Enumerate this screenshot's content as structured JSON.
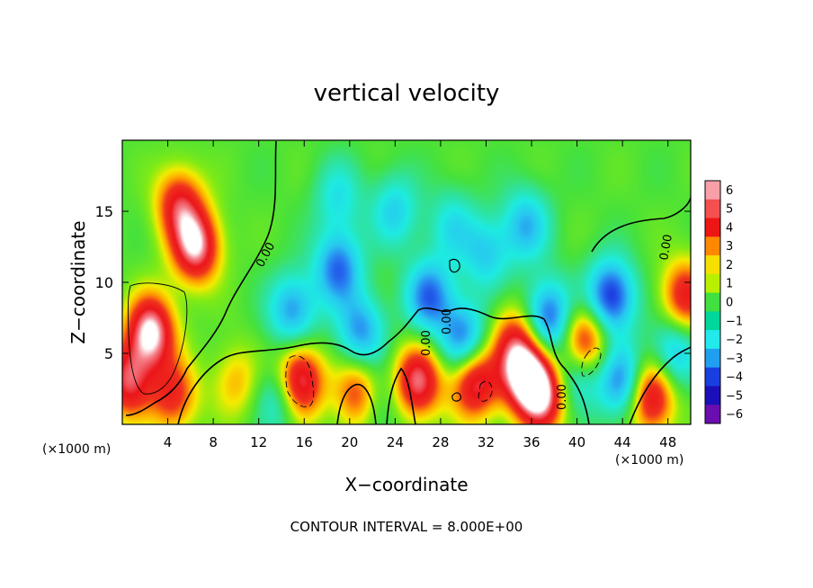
{
  "chart_data": {
    "type": "heatmap",
    "title": "vertical velocity",
    "xlabel": "X−coordinate",
    "ylabel": "Z−coordinate",
    "x_unit_left": "(×1000 m)",
    "x_unit_right": "(×1000 m)",
    "xlim": [
      0,
      50
    ],
    "ylim": [
      0,
      20
    ],
    "x_ticks": [
      4,
      8,
      12,
      16,
      20,
      24,
      28,
      32,
      36,
      40,
      44,
      48
    ],
    "x_tick_labels": [
      "4",
      "8",
      "12",
      "16",
      "20",
      "24",
      "28",
      "32",
      "36",
      "40",
      "44",
      "48"
    ],
    "y_ticks": [
      5,
      10,
      15
    ],
    "y_tick_labels": [
      "5",
      "10",
      "15"
    ],
    "colorbar": {
      "min": -6,
      "max": 6,
      "tick_values": [
        6,
        5,
        4,
        3,
        2,
        1,
        0,
        -1,
        -2,
        -3,
        -4,
        -5,
        -6
      ],
      "tick_labels": [
        "6",
        "5",
        "4",
        "3",
        "2",
        "1",
        "0",
        "−1",
        "−2",
        "−3",
        "−4",
        "−5",
        "−6"
      ],
      "colors": [
        "#f7a0a8",
        "#f45050",
        "#ee1515",
        "#ff8800",
        "#f5e000",
        "#b8f000",
        "#3fe03f",
        "#00d79a",
        "#22eaea",
        "#1f9ff0",
        "#1a3fe0",
        "#1a0fb8",
        "#6a0eb0"
      ]
    },
    "contour_labels": [
      "0.00",
      "0.00",
      "0.00",
      "0.00",
      "0.00"
    ],
    "footer": "CONTOUR INTERVAL = 8.000E+00",
    "features": [
      {
        "x": 2.5,
        "z": 6.5,
        "w": 6
      },
      {
        "x": 6.5,
        "z": 12.5,
        "w": 5.5
      },
      {
        "x": 5,
        "z": 15.5,
        "w": 4
      },
      {
        "x": 0.5,
        "z": 3,
        "w": 4.5
      },
      {
        "x": 4.5,
        "z": 2,
        "w": 3.5
      },
      {
        "x": 10,
        "z": 3,
        "w": 2
      },
      {
        "x": 15.5,
        "z": 3,
        "w": 6
      },
      {
        "x": 21,
        "z": 2,
        "w": 5
      },
      {
        "x": 26,
        "z": 3,
        "w": 5
      },
      {
        "x": 31,
        "z": 3,
        "w": 5
      },
      {
        "x": 35.5,
        "z": 3.5,
        "w": 6
      },
      {
        "x": 37,
        "z": 2,
        "w": 5
      },
      {
        "x": 34.5,
        "z": 6,
        "w": 3
      },
      {
        "x": 40.5,
        "z": 5.5,
        "w": 6
      },
      {
        "x": 46.5,
        "z": 2,
        "w": 5
      },
      {
        "x": 49.5,
        "z": 9,
        "w": 4
      },
      {
        "x": 15,
        "z": 8,
        "w": -3.5
      },
      {
        "x": 19,
        "z": 11,
        "w": -4
      },
      {
        "x": 21,
        "z": 6.5,
        "w": -3.5
      },
      {
        "x": 27,
        "z": 9,
        "w": -4
      },
      {
        "x": 30,
        "z": 6,
        "w": -4
      },
      {
        "x": 22,
        "z": 1.5,
        "w": -3
      },
      {
        "x": 14,
        "z": 2,
        "w": -3
      },
      {
        "x": 37.5,
        "z": 7.5,
        "w": -4.5
      },
      {
        "x": 40,
        "z": 4,
        "w": -4.5
      },
      {
        "x": 43,
        "z": 9,
        "w": -5
      },
      {
        "x": 44,
        "z": 3,
        "w": -4
      },
      {
        "x": 35.5,
        "z": 14,
        "w": -3
      },
      {
        "x": 32,
        "z": 12,
        "w": -2.5
      },
      {
        "x": 24,
        "z": 15,
        "w": -2.5
      },
      {
        "x": 19,
        "z": 16,
        "w": -2
      },
      {
        "x": 29,
        "z": 14,
        "w": -2
      },
      {
        "x": 48.5,
        "z": 5,
        "w": -3
      }
    ]
  }
}
